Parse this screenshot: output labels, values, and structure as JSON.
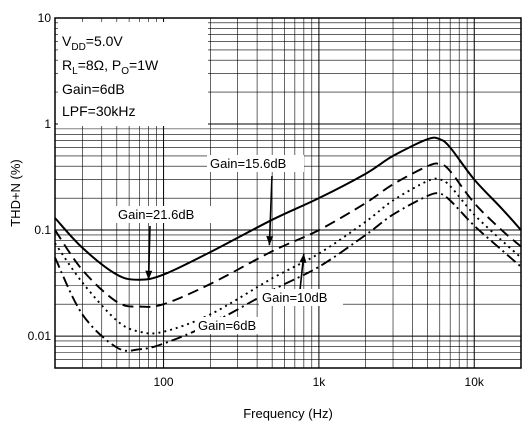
{
  "chart_data": {
    "type": "line",
    "title": "",
    "xlabel": "Frequency (Hz)",
    "ylabel": "THD+N (%)",
    "x_scale": "log",
    "y_scale": "log",
    "xlim": [
      20,
      20000
    ],
    "ylim": [
      0.005,
      10
    ],
    "grid": true,
    "x_ticks": [
      {
        "value": 100,
        "label": "100"
      },
      {
        "value": 1000,
        "label": "1k"
      },
      {
        "value": 10000,
        "label": "10k"
      }
    ],
    "y_ticks": [
      {
        "value": 0.01,
        "label": "0.01"
      },
      {
        "value": 0.1,
        "label": "0.1"
      },
      {
        "value": 1,
        "label": "1"
      },
      {
        "value": 10,
        "label": "10"
      }
    ],
    "conditions": {
      "vdd": {
        "main": "V",
        "sub": "DD",
        "rest": "=5.0V"
      },
      "load": {
        "r": "R",
        "r_sub": "L",
        "r_rest": "=8Ω, ",
        "p": "P",
        "p_sub": "O",
        "p_rest": "=1W"
      },
      "gain": "Gain=6dB",
      "lpf": "LPF=30kHz"
    },
    "series": [
      {
        "name": "Gain=21.6dB",
        "style": "solid",
        "x": [
          20,
          30,
          50,
          70,
          100,
          200,
          500,
          1000,
          2000,
          3000,
          5000,
          6000,
          7000,
          10000,
          15000,
          20000
        ],
        "y": [
          0.13,
          0.068,
          0.038,
          0.034,
          0.038,
          0.062,
          0.125,
          0.2,
          0.34,
          0.5,
          0.72,
          0.72,
          0.6,
          0.3,
          0.16,
          0.1
        ]
      },
      {
        "name": "Gain=15.6dB",
        "style": "dashed",
        "x": [
          20,
          30,
          50,
          70,
          100,
          200,
          500,
          1000,
          2000,
          3000,
          5000,
          6000,
          7000,
          10000,
          15000,
          20000
        ],
        "y": [
          0.1,
          0.042,
          0.021,
          0.019,
          0.02,
          0.031,
          0.063,
          0.1,
          0.18,
          0.27,
          0.4,
          0.42,
          0.36,
          0.18,
          0.1,
          0.07
        ]
      },
      {
        "name": "Gain=10dB",
        "style": "dotted",
        "x": [
          20,
          30,
          50,
          70,
          100,
          200,
          500,
          1000,
          2000,
          3000,
          5000,
          6000,
          7000,
          10000,
          15000,
          20000
        ],
        "y": [
          0.075,
          0.032,
          0.014,
          0.011,
          0.011,
          0.016,
          0.035,
          0.06,
          0.12,
          0.19,
          0.29,
          0.3,
          0.26,
          0.14,
          0.08,
          0.055
        ]
      },
      {
        "name": "Gain=6dB",
        "style": "dashdot",
        "x": [
          20,
          30,
          50,
          70,
          100,
          200,
          500,
          1000,
          2000,
          3000,
          5000,
          6000,
          7000,
          10000,
          15000,
          20000
        ],
        "y": [
          0.055,
          0.016,
          0.0078,
          0.0075,
          0.0085,
          0.013,
          0.027,
          0.045,
          0.09,
          0.14,
          0.21,
          0.22,
          0.19,
          0.11,
          0.065,
          0.045
        ]
      }
    ],
    "annotations": [
      {
        "text": "Gain=21.6dB",
        "points_to": "Gain=21.6dB",
        "x": 80,
        "y": 0.034
      },
      {
        "text": "Gain=15.6dB",
        "points_to": "Gain=15.6dB",
        "x": 480,
        "y": 0.072
      },
      {
        "text": "Gain=10dB",
        "points_to": "Gain=10dB",
        "x": 800,
        "y": 0.06
      },
      {
        "text": "Gain=6dB",
        "points_to": "Gain=6dB",
        "x": 270,
        "y": 0.013
      }
    ]
  }
}
